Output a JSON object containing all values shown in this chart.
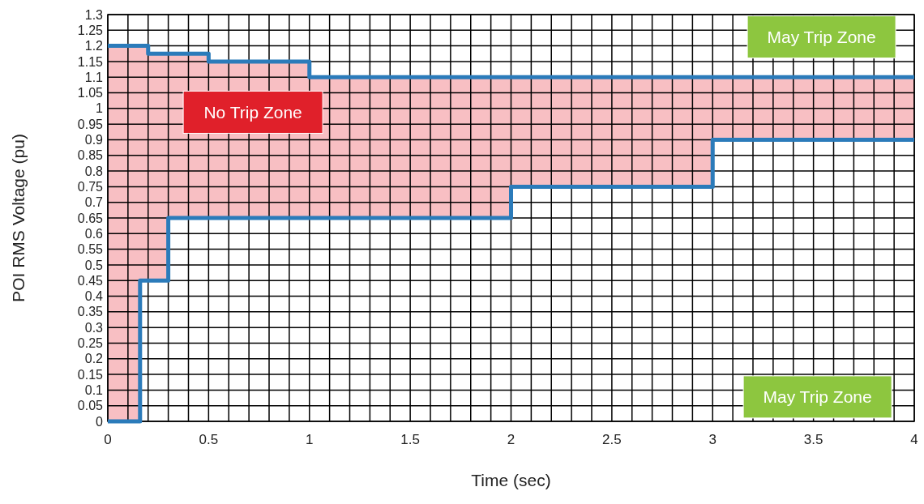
{
  "chart_data": {
    "type": "step",
    "xlabel": "Time (sec)",
    "ylabel": "POI RMS Voltage (pu)",
    "x": [
      0,
      0.16,
      0.2,
      0.3,
      0.5,
      1,
      2,
      3,
      4
    ],
    "series": [
      {
        "color": "#2b7bba",
        "values": [
          1.2,
          1.2,
          1.175,
          1.175,
          1.15,
          1.1,
          1.1,
          1.1,
          1.1
        ],
        "lower": [
          0,
          0.45,
          0.45,
          0.65,
          0.65,
          0.65,
          0.75,
          0.9,
          0.9
        ],
        "upper": [
          1.2,
          1.2,
          1.175,
          1.175,
          1.15,
          1.1,
          1.1,
          1.1,
          1.1
        ]
      },
      {
        "color": "#2b7bba",
        "values": [
          0,
          0.45,
          0.45,
          0.65,
          0.65,
          0.65,
          0.75,
          0.9,
          0.9
        ]
      }
    ],
    "xlim": [
      0,
      4
    ],
    "xticks": [
      0,
      {
        "value": 0.1,
        "label": null
      },
      {
        "value": 0.2,
        "label": null
      },
      {
        "value": 0.3,
        "label": null
      },
      {
        "value": 0.4,
        "label": null
      },
      0.5,
      {
        "value": 0.6,
        "label": null
      },
      {
        "value": 0.7,
        "label": null
      },
      {
        "value": 0.8,
        "label": null
      },
      {
        "value": 0.9,
        "label": null
      },
      1,
      {
        "value": 1.1,
        "label": null
      },
      {
        "value": 1.2,
        "label": null
      },
      {
        "value": 1.3,
        "label": null
      },
      {
        "value": 1.4,
        "label": null
      },
      1.5,
      {
        "value": 1.6,
        "label": null
      },
      {
        "value": 1.7,
        "label": null
      },
      {
        "value": 1.8,
        "label": null
      },
      {
        "value": 1.9,
        "label": null
      },
      2,
      {
        "value": 2.1,
        "label": null
      },
      {
        "value": 2.2,
        "label": null
      },
      {
        "value": 2.3,
        "label": null
      },
      {
        "value": 2.4,
        "label": null
      },
      2.5,
      {
        "value": 2.6,
        "label": null
      },
      {
        "value": 2.7,
        "label": null
      },
      {
        "value": 2.8,
        "label": null
      },
      {
        "value": 2.9,
        "label": null
      },
      3,
      {
        "value": 3.1,
        "label": null
      },
      {
        "value": 3.2,
        "label": null
      },
      {
        "value": 3.3,
        "label": null
      },
      {
        "value": 3.4,
        "label": null
      },
      3.5,
      {
        "value": 3.6,
        "label": null
      },
      {
        "value": 3.7,
        "label": null
      },
      {
        "value": 3.8,
        "label": null
      },
      {
        "value": 3.9,
        "label": null
      },
      4
    ],
    "ylim": [
      0,
      1.3
    ],
    "yticks": [
      0,
      0.05,
      0.1,
      0.15,
      0.2,
      0.25,
      0.3,
      0.35,
      0.4,
      0.45,
      0.5,
      0.55,
      0.6,
      0.65,
      0.7,
      0.75,
      0.8,
      0.85,
      0.9,
      0.95,
      1,
      1.05,
      1.1,
      1.15,
      1.2,
      1.25,
      1.3
    ],
    "grid": true,
    "line_style": "solid",
    "marker": "none",
    "annotations": [
      "No Trip Zone",
      "May Trip Zone",
      "May Trip Zone"
    ]
  }
}
